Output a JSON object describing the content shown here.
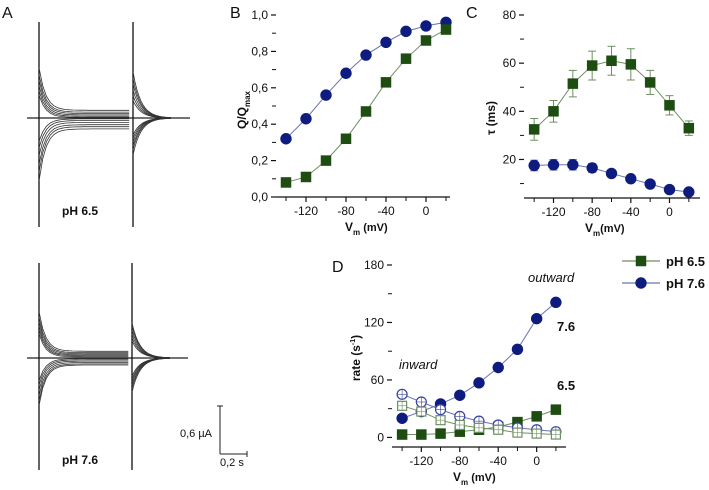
{
  "colors": {
    "ph65": "#1e4d12",
    "ph65_line": "#6e8f62",
    "ph76": "#0f1c7f",
    "ph76_line": "#6b73b0",
    "ph65_open": "#6e8f62",
    "ph76_open": "#3a44a0"
  },
  "panel_a": {
    "letter": "A",
    "top_label": "pH 6.5",
    "bottom_label": "pH 7.6",
    "scale_current": "0,6 µA",
    "scale_time": "0,2 s",
    "top_levels": [
      -0.55,
      -0.42,
      -0.32,
      -0.22,
      -0.13,
      -0.05,
      0.06,
      0.18,
      0.32,
      0.48,
      0.62,
      0.78
    ],
    "bottom_levels": [
      -0.48,
      -0.38,
      -0.3,
      -0.22,
      -0.15,
      -0.08,
      0.05,
      0.13,
      0.22,
      0.32,
      0.42,
      0.5
    ]
  },
  "legend": {
    "items": [
      {
        "label": "pH 6.5",
        "marker": "square"
      },
      {
        "label": "pH 7.6",
        "marker": "circle"
      }
    ]
  },
  "chart_data": [
    {
      "panel": "B",
      "type": "line",
      "title": "",
      "xlabel": "V",
      "xlabel_sub": "m",
      "xlabel_unit": " (mV)",
      "ylabel": "Q/Q",
      "ylabel_sub": "max",
      "xlim": [
        -150,
        30
      ],
      "ylim": [
        0,
        1
      ],
      "xticks": [
        -120,
        -80,
        -40,
        0
      ],
      "xticks_minor": [
        -140,
        -100,
        -60,
        -20,
        20
      ],
      "yticks": [
        0,
        0.2,
        0.4,
        0.6,
        0.8,
        1.0
      ],
      "ytick_labels": [
        "0,0",
        "0,2",
        "0,4",
        "0,6",
        "0,8",
        "1,0"
      ],
      "x": [
        -140,
        -120,
        -100,
        -80,
        -60,
        -40,
        -20,
        0,
        20
      ],
      "series": [
        {
          "name": "pH 7.6",
          "marker": "circle",
          "filled": true,
          "values": [
            0.32,
            0.43,
            0.56,
            0.68,
            0.78,
            0.85,
            0.91,
            0.94,
            0.96
          ]
        },
        {
          "name": "pH 6.5",
          "marker": "square",
          "filled": true,
          "values": [
            0.08,
            0.11,
            0.2,
            0.32,
            0.47,
            0.63,
            0.76,
            0.86,
            0.92
          ]
        }
      ]
    },
    {
      "panel": "C",
      "type": "line",
      "title": "",
      "xlabel": "V",
      "xlabel_sub": "m",
      "xlabel_unit": "(mV)",
      "ylabel": "τ (ms)",
      "xlim": [
        -150,
        30
      ],
      "ylim": [
        4,
        80
      ],
      "xticks": [
        -120,
        -80,
        -40,
        0
      ],
      "xticks_minor": [
        -140,
        -100,
        -60,
        -20,
        20
      ],
      "yticks": [
        20,
        40,
        60,
        80
      ],
      "ytick_labels": [
        "20",
        "40",
        "60",
        "80"
      ],
      "yticks_minor": [
        10,
        30,
        50,
        70
      ],
      "x": [
        -140,
        -120,
        -100,
        -80,
        -60,
        -40,
        -20,
        0,
        20
      ],
      "series": [
        {
          "name": "pH 6.5",
          "marker": "square",
          "filled": true,
          "values": [
            32.5,
            40,
            51.5,
            59,
            61,
            59.5,
            52,
            42.5,
            33
          ],
          "errors": [
            4.5,
            4.5,
            5.5,
            6,
            6,
            6.5,
            5,
            4,
            3
          ]
        },
        {
          "name": "pH 7.6",
          "marker": "circle",
          "filled": true,
          "values": [
            17.5,
            17.8,
            17.8,
            16.5,
            14.2,
            12,
            9.8,
            7.5,
            6.5
          ],
          "errors": [
            2.2,
            2.2,
            2.2,
            1.8,
            1.2,
            1,
            1,
            0.8,
            0.8
          ]
        }
      ]
    },
    {
      "panel": "D",
      "type": "line",
      "title": "",
      "xlabel": "V",
      "xlabel_sub": "m",
      "xlabel_unit": " (mV)",
      "ylabel": "rate (s",
      "ylabel_sup": "-1",
      "ylabel_close": ")",
      "xlim": [
        -150,
        30
      ],
      "ylim": [
        -10,
        180
      ],
      "xticks": [
        -120,
        -80,
        -40,
        0
      ],
      "xticks_minor": [
        -140,
        -100,
        -60,
        -20,
        20
      ],
      "yticks": [
        0,
        60,
        120,
        180
      ],
      "ytick_labels": [
        "0",
        "60",
        "120",
        "180"
      ],
      "yticks_minor": [
        30,
        90,
        150
      ],
      "x": [
        -140,
        -120,
        -100,
        -80,
        -60,
        -40,
        -20,
        0,
        20
      ],
      "annotations": {
        "outward": "outward",
        "inward": "inward",
        "ph76": "7.6",
        "ph65": "6.5"
      },
      "series": [
        {
          "name": "pH 7.6 outward",
          "marker": "circle",
          "filled": true,
          "values": [
            20,
            27,
            35,
            44,
            57,
            73,
            92,
            124,
            141
          ]
        },
        {
          "name": "pH 6.5 outward",
          "marker": "square",
          "filled": true,
          "values": [
            3,
            3,
            4,
            6,
            8,
            11,
            16,
            22,
            29
          ]
        },
        {
          "name": "pH 7.6 inward",
          "marker": "circle",
          "filled": false,
          "values": [
            45,
            37,
            29,
            22,
            17,
            13,
            10,
            8,
            6
          ]
        },
        {
          "name": "pH 6.5 inward",
          "marker": "square",
          "filled": false,
          "values": [
            33,
            27,
            18,
            13,
            10,
            8,
            5,
            4,
            3
          ]
        }
      ]
    }
  ]
}
